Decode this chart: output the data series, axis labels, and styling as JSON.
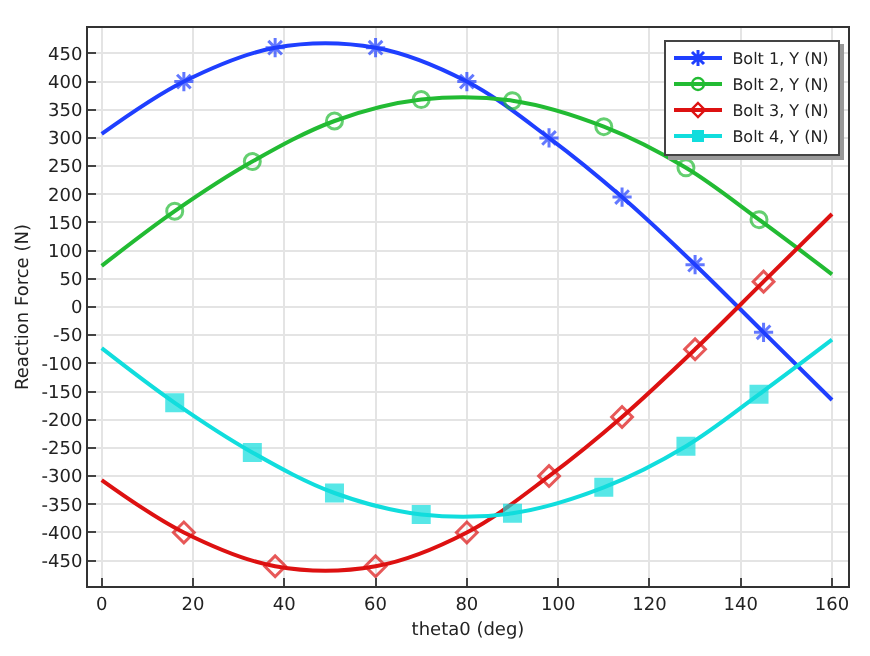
{
  "chart_data": {
    "type": "line",
    "xlabel": "theta0 (deg)",
    "ylabel": "Reaction Force (N)",
    "xlim": [
      -3,
      163.5
    ],
    "xticks": [
      0,
      20,
      40,
      60,
      80,
      100,
      120,
      140,
      160
    ],
    "ylim": [
      -495,
      495
    ],
    "yticks": [
      -450,
      -400,
      -350,
      -300,
      -250,
      -200,
      -150,
      -100,
      -50,
      0,
      50,
      100,
      150,
      200,
      250,
      300,
      350,
      400,
      450
    ],
    "grid": true,
    "legend": "top right",
    "line_style": "solid",
    "series": [
      {
        "name": "Bolt 1, Y (N)",
        "color": "#1f3fff",
        "marker": "cross",
        "x": [
          0,
          18,
          38,
          60,
          80,
          98,
          114,
          130,
          145,
          160
        ],
        "values": [
          307,
          400,
          460,
          460,
          400,
          300,
          195,
          75,
          -45,
          -165
        ]
      },
      {
        "name": "Bolt 2, Y (N)",
        "color": "#22bb33",
        "marker": "circle",
        "x": [
          0,
          16,
          33,
          51,
          70,
          90,
          110,
          128,
          144,
          160
        ],
        "values": [
          73,
          170,
          258,
          330,
          368,
          366,
          320,
          247,
          155,
          58
        ]
      },
      {
        "name": "Bolt 3, Y (N)",
        "color": "#dd1111",
        "marker": "diamond",
        "x": [
          0,
          18,
          38,
          60,
          80,
          98,
          114,
          130,
          145,
          160
        ],
        "values": [
          -307,
          -400,
          -460,
          -460,
          -400,
          -300,
          -195,
          -75,
          45,
          165
        ]
      },
      {
        "name": "Bolt 4, Y (N)",
        "color": "#11dddd",
        "marker": "square",
        "x": [
          0,
          16,
          33,
          51,
          70,
          90,
          110,
          128,
          144,
          160
        ],
        "values": [
          -73,
          -170,
          -258,
          -330,
          -368,
          -366,
          -320,
          -247,
          -155,
          -58
        ]
      }
    ]
  }
}
